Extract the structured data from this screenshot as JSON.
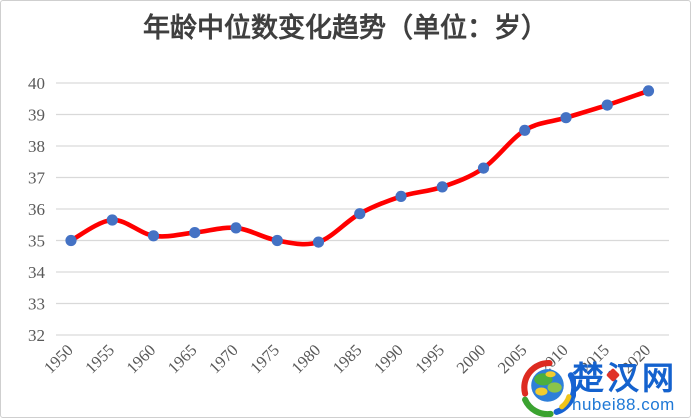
{
  "page": {
    "background": "#FFFFFF",
    "border_color": "#CFCFCF"
  },
  "chart_data": {
    "type": "line",
    "title": "年龄中位数变化趋势（单位：岁）",
    "categories": [
      "1950",
      "1955",
      "1960",
      "1965",
      "1970",
      "1975",
      "1980",
      "1985",
      "1990",
      "1995",
      "2000",
      "2005",
      "2010",
      "2015",
      "2020"
    ],
    "values": [
      35.0,
      35.65,
      35.15,
      35.25,
      35.4,
      35.0,
      34.95,
      35.85,
      36.4,
      36.7,
      37.3,
      38.5,
      38.9,
      39.3,
      39.75
    ],
    "xlabel": "",
    "ylabel": "",
    "ylim": [
      32,
      40
    ],
    "y_ticks": [
      40,
      39,
      38,
      37,
      36,
      35,
      34,
      33,
      32
    ],
    "grid": "horizontal",
    "legend": "none",
    "smooth": true,
    "line_color": "#FF0000",
    "marker_color": "#4472C4",
    "marker_shape": "circle",
    "gridline_color": "#D9D9D9",
    "axis_text_color": "#595959",
    "title_color": "#3F3F3F",
    "x_label_rotation": -45
  },
  "watermark": {
    "logo_icon": "globe-icon",
    "site_name": "楚汉网",
    "site_url": "hubei88.com",
    "name_color": "#1462CE",
    "url_color": "#1E78D6",
    "accent_red": "#E03228"
  }
}
